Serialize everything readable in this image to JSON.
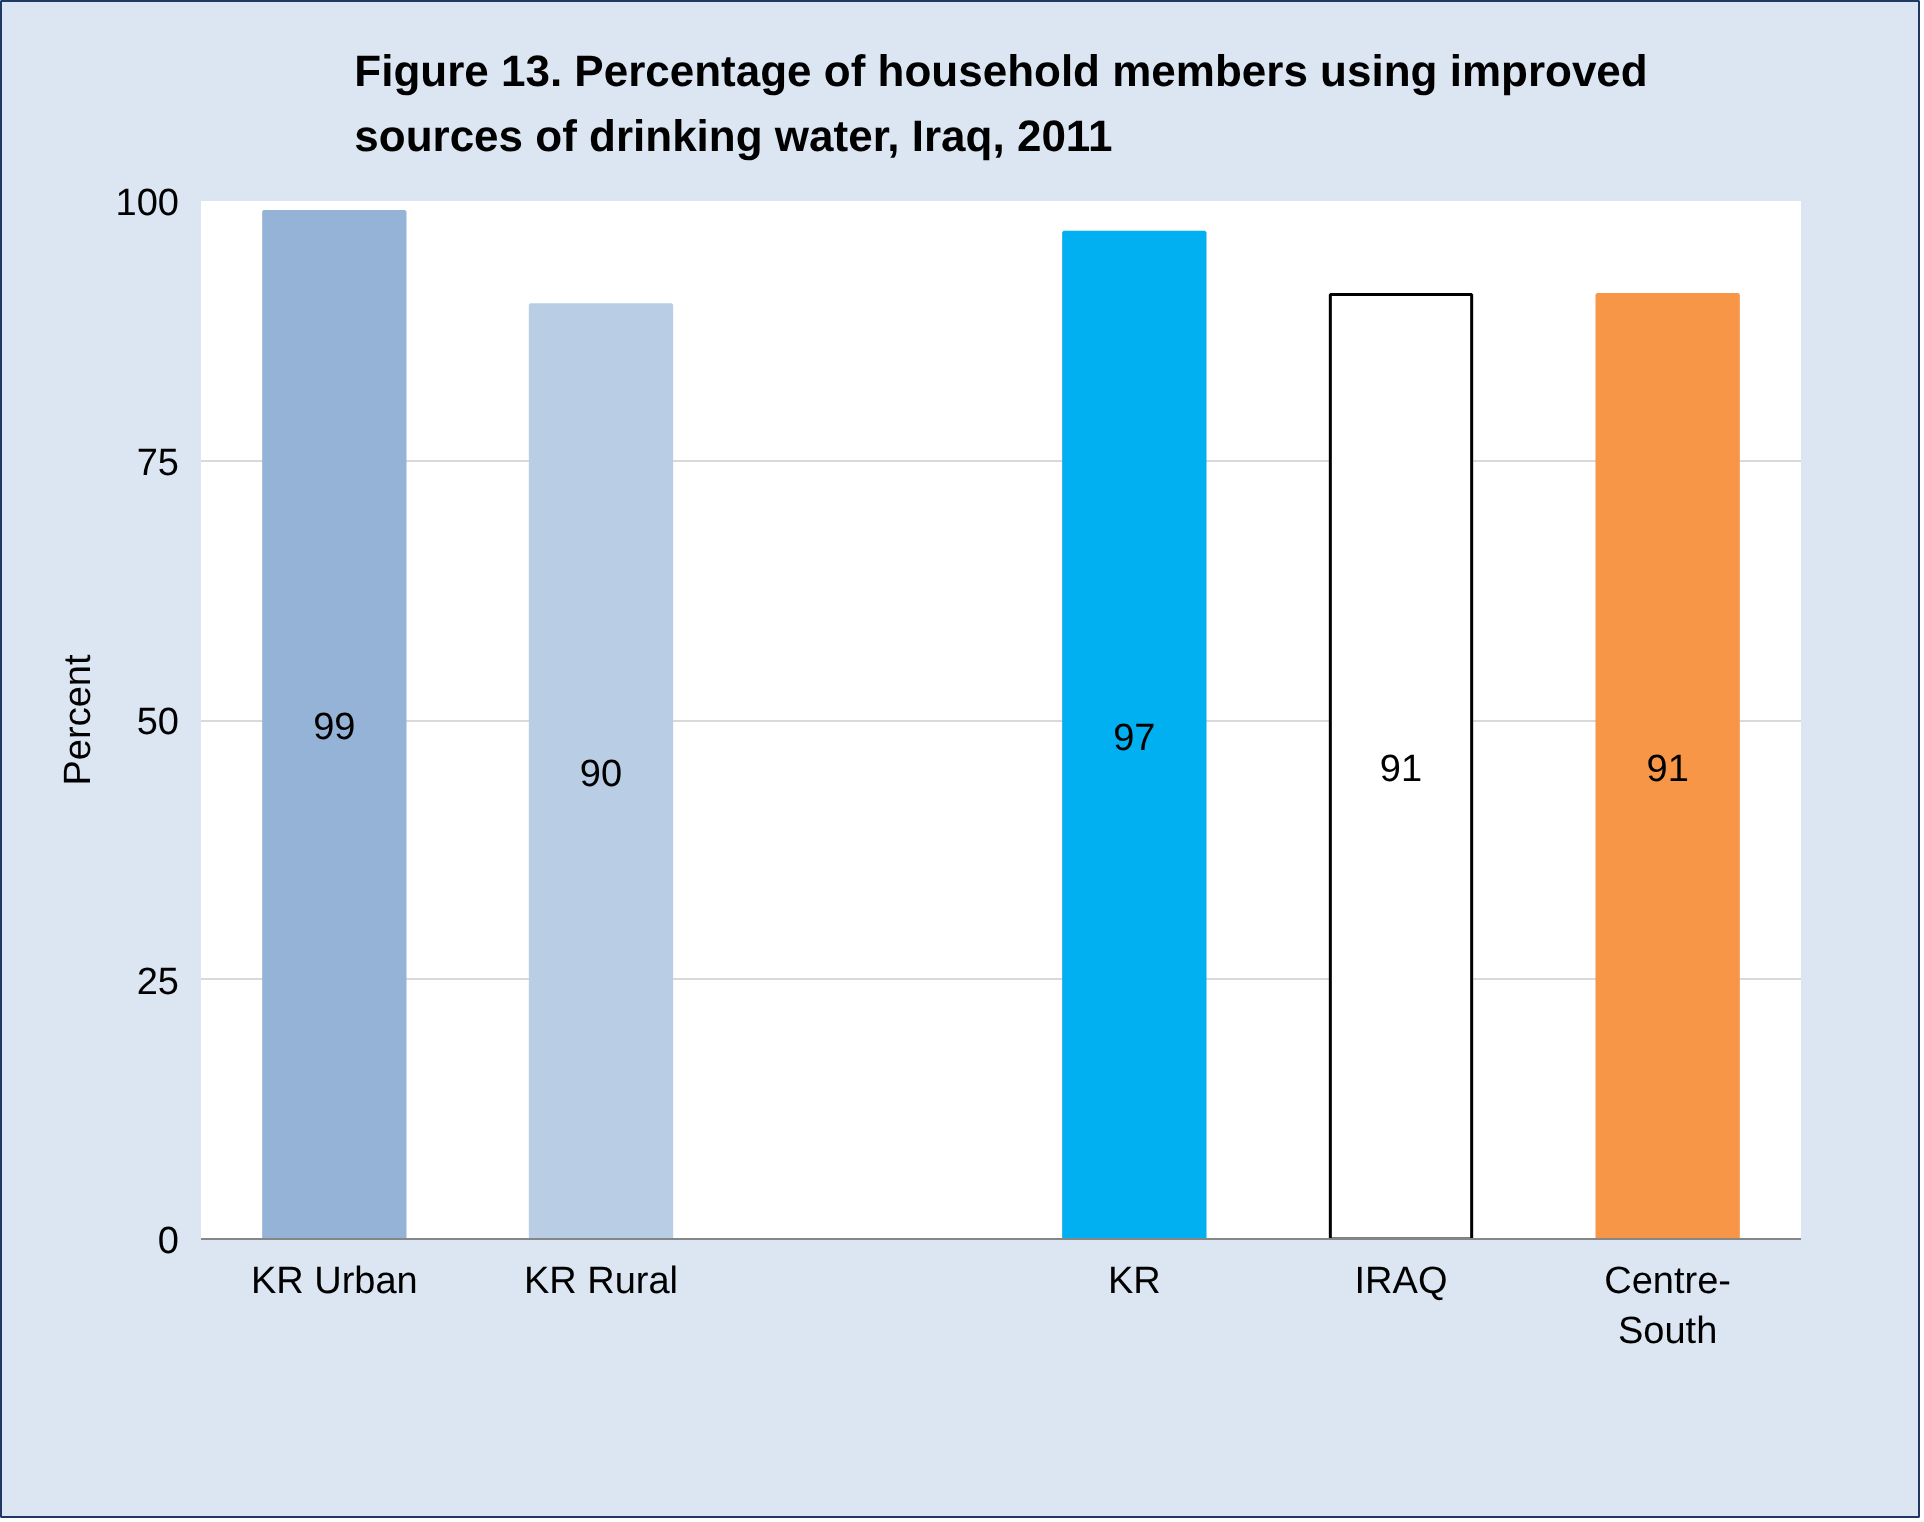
{
  "chart_data": {
    "type": "bar",
    "title": "Figure 13. Percentage of household members using improved sources of drinking water, Iraq, 2011",
    "ylabel": "Percent",
    "categories": [
      "KR Urban",
      "KR Rural",
      null,
      "KR",
      "IRAQ",
      "Centre-South"
    ],
    "values": [
      99,
      90,
      null,
      97,
      91,
      91
    ],
    "colors": [
      "#95b3d7",
      "#b9cde5",
      "#ffffff",
      "#00b0f0",
      "#ffffff",
      "#f79646"
    ],
    "ylim": [
      0,
      100
    ],
    "yticks": [
      0,
      25,
      50,
      75,
      100
    ],
    "grid": "y",
    "data_labels": true
  }
}
